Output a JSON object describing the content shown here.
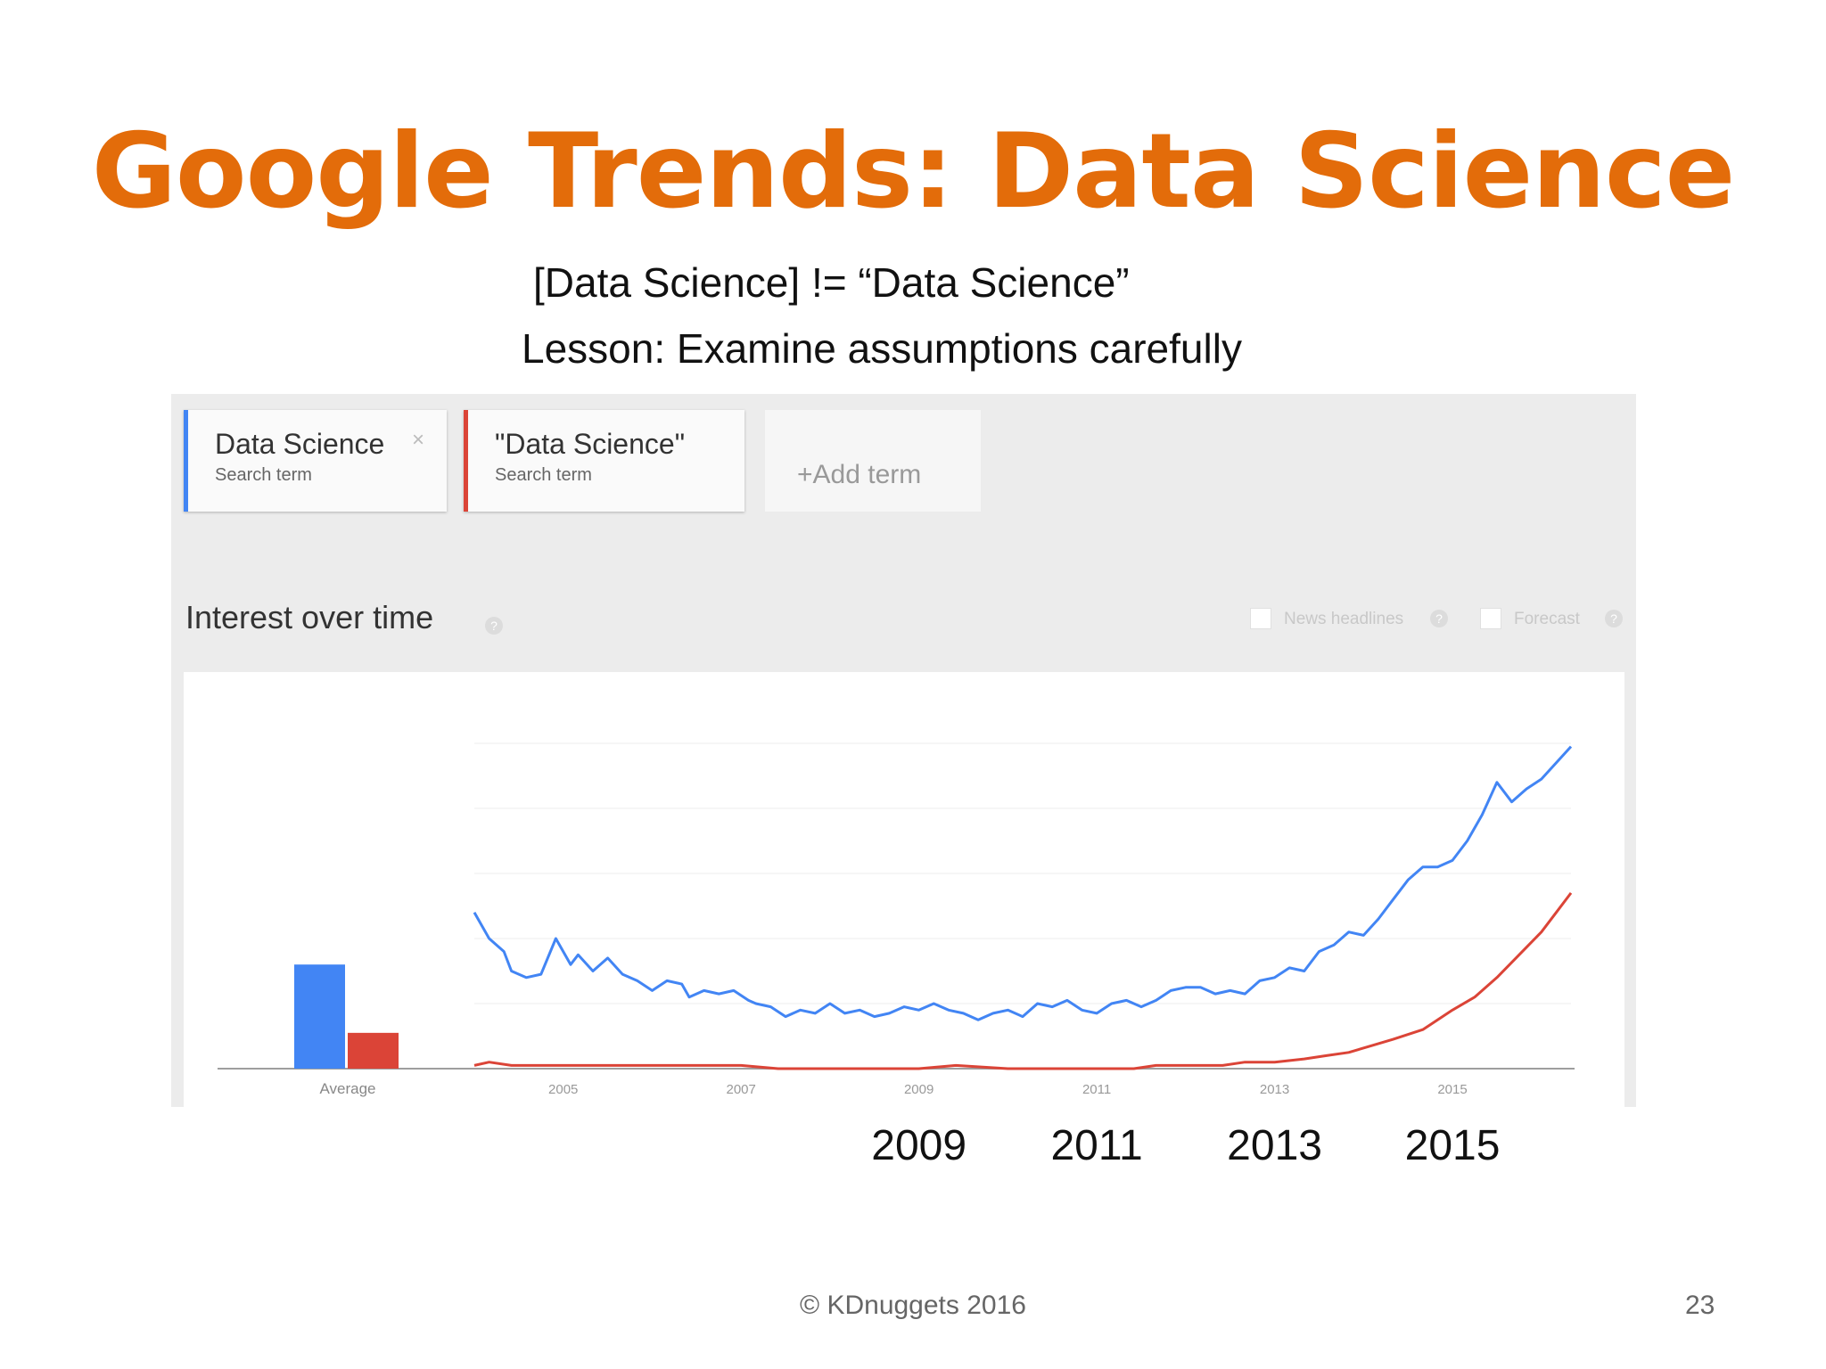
{
  "slide": {
    "title": "Google Trends: Data Science",
    "subtitle_line1": "[Data Science] !=   “Data Science”",
    "subtitle_line2": "Lesson:  Examine assumptions carefully",
    "footer": "© KDnuggets 2016",
    "page_number": "23",
    "year_callouts": [
      "2009",
      "2011",
      "2013",
      "2015"
    ]
  },
  "trends_ui": {
    "terms": [
      {
        "name": "Data Science",
        "sub": "Search term",
        "color": "#4285f4",
        "close": "×"
      },
      {
        "name": "\"Data Science\"",
        "sub": "Search term",
        "color": "#db4437"
      }
    ],
    "add_term": "+Add term",
    "section_title": "Interest over time",
    "help_glyph": "?",
    "options": [
      {
        "label": "News headlines"
      },
      {
        "label": "Forecast"
      }
    ]
  },
  "chart_data": {
    "type": "line",
    "x_start": "2004-01",
    "x_end": "2016-05",
    "x_tick_labels": [
      "2005",
      "2007",
      "2009",
      "2011",
      "2013",
      "2015"
    ],
    "bar_label": "Average",
    "averages": {
      "blue": 32,
      "red": 11
    },
    "grid": true,
    "ylim": [
      0,
      100
    ],
    "series": [
      {
        "color": "#4285f4",
        "points": [
          [
            "2004-01",
            48
          ],
          [
            "2004-02",
            44
          ],
          [
            "2004-03",
            40
          ],
          [
            "2004-05",
            36
          ],
          [
            "2004-06",
            30
          ],
          [
            "2004-08",
            28
          ],
          [
            "2004-10",
            29
          ],
          [
            "2004-12",
            40
          ],
          [
            "2005-02",
            32
          ],
          [
            "2005-03",
            35
          ],
          [
            "2005-05",
            30
          ],
          [
            "2005-07",
            34
          ],
          [
            "2005-09",
            29
          ],
          [
            "2005-11",
            27
          ],
          [
            "2006-01",
            24
          ],
          [
            "2006-03",
            27
          ],
          [
            "2006-05",
            26
          ],
          [
            "2006-06",
            22
          ],
          [
            "2006-08",
            24
          ],
          [
            "2006-10",
            23
          ],
          [
            "2006-12",
            24
          ],
          [
            "2007-02",
            21
          ],
          [
            "2007-03",
            20
          ],
          [
            "2007-05",
            19
          ],
          [
            "2007-07",
            16
          ],
          [
            "2007-09",
            18
          ],
          [
            "2007-11",
            17
          ],
          [
            "2008-01",
            20
          ],
          [
            "2008-03",
            17
          ],
          [
            "2008-05",
            18
          ],
          [
            "2008-07",
            16
          ],
          [
            "2008-09",
            17
          ],
          [
            "2008-11",
            19
          ],
          [
            "2009-01",
            18
          ],
          [
            "2009-03",
            20
          ],
          [
            "2009-05",
            18
          ],
          [
            "2009-07",
            17
          ],
          [
            "2009-09",
            15
          ],
          [
            "2009-11",
            17
          ],
          [
            "2010-01",
            18
          ],
          [
            "2010-03",
            16
          ],
          [
            "2010-05",
            20
          ],
          [
            "2010-07",
            19
          ],
          [
            "2010-09",
            21
          ],
          [
            "2010-11",
            18
          ],
          [
            "2011-01",
            17
          ],
          [
            "2011-03",
            20
          ],
          [
            "2011-05",
            21
          ],
          [
            "2011-07",
            19
          ],
          [
            "2011-09",
            21
          ],
          [
            "2011-11",
            24
          ],
          [
            "2012-01",
            25
          ],
          [
            "2012-03",
            25
          ],
          [
            "2012-05",
            23
          ],
          [
            "2012-07",
            24
          ],
          [
            "2012-09",
            23
          ],
          [
            "2012-11",
            27
          ],
          [
            "2013-01",
            28
          ],
          [
            "2013-03",
            31
          ],
          [
            "2013-05",
            30
          ],
          [
            "2013-07",
            36
          ],
          [
            "2013-09",
            38
          ],
          [
            "2013-11",
            42
          ],
          [
            "2014-01",
            41
          ],
          [
            "2014-03",
            46
          ],
          [
            "2014-05",
            52
          ],
          [
            "2014-07",
            58
          ],
          [
            "2014-09",
            62
          ],
          [
            "2014-11",
            62
          ],
          [
            "2015-01",
            64
          ],
          [
            "2015-03",
            70
          ],
          [
            "2015-05",
            78
          ],
          [
            "2015-07",
            88
          ],
          [
            "2015-09",
            82
          ],
          [
            "2015-11",
            86
          ],
          [
            "2016-01",
            89
          ],
          [
            "2016-03",
            94
          ],
          [
            "2016-05",
            99
          ]
        ]
      },
      {
        "color": "#db4437",
        "points": [
          [
            "2004-01",
            1
          ],
          [
            "2004-03",
            2
          ],
          [
            "2004-06",
            1
          ],
          [
            "2004-09",
            1
          ],
          [
            "2005-01",
            1
          ],
          [
            "2005-06",
            1
          ],
          [
            "2006-01",
            1
          ],
          [
            "2006-06",
            1
          ],
          [
            "2007-01",
            1
          ],
          [
            "2007-06",
            0
          ],
          [
            "2008-01",
            0
          ],
          [
            "2009-01",
            0
          ],
          [
            "2009-06",
            1
          ],
          [
            "2010-01",
            0
          ],
          [
            "2010-06",
            0
          ],
          [
            "2011-01",
            0
          ],
          [
            "2011-06",
            0
          ],
          [
            "2011-09",
            1
          ],
          [
            "2012-01",
            1
          ],
          [
            "2012-06",
            1
          ],
          [
            "2012-09",
            2
          ],
          [
            "2013-01",
            2
          ],
          [
            "2013-05",
            3
          ],
          [
            "2013-08",
            4
          ],
          [
            "2013-11",
            5
          ],
          [
            "2014-02",
            7
          ],
          [
            "2014-05",
            9
          ],
          [
            "2014-09",
            12
          ],
          [
            "2015-01",
            18
          ],
          [
            "2015-04",
            22
          ],
          [
            "2015-07",
            28
          ],
          [
            "2015-10",
            35
          ],
          [
            "2016-01",
            42
          ],
          [
            "2016-03",
            48
          ],
          [
            "2016-05",
            54
          ]
        ]
      }
    ]
  }
}
